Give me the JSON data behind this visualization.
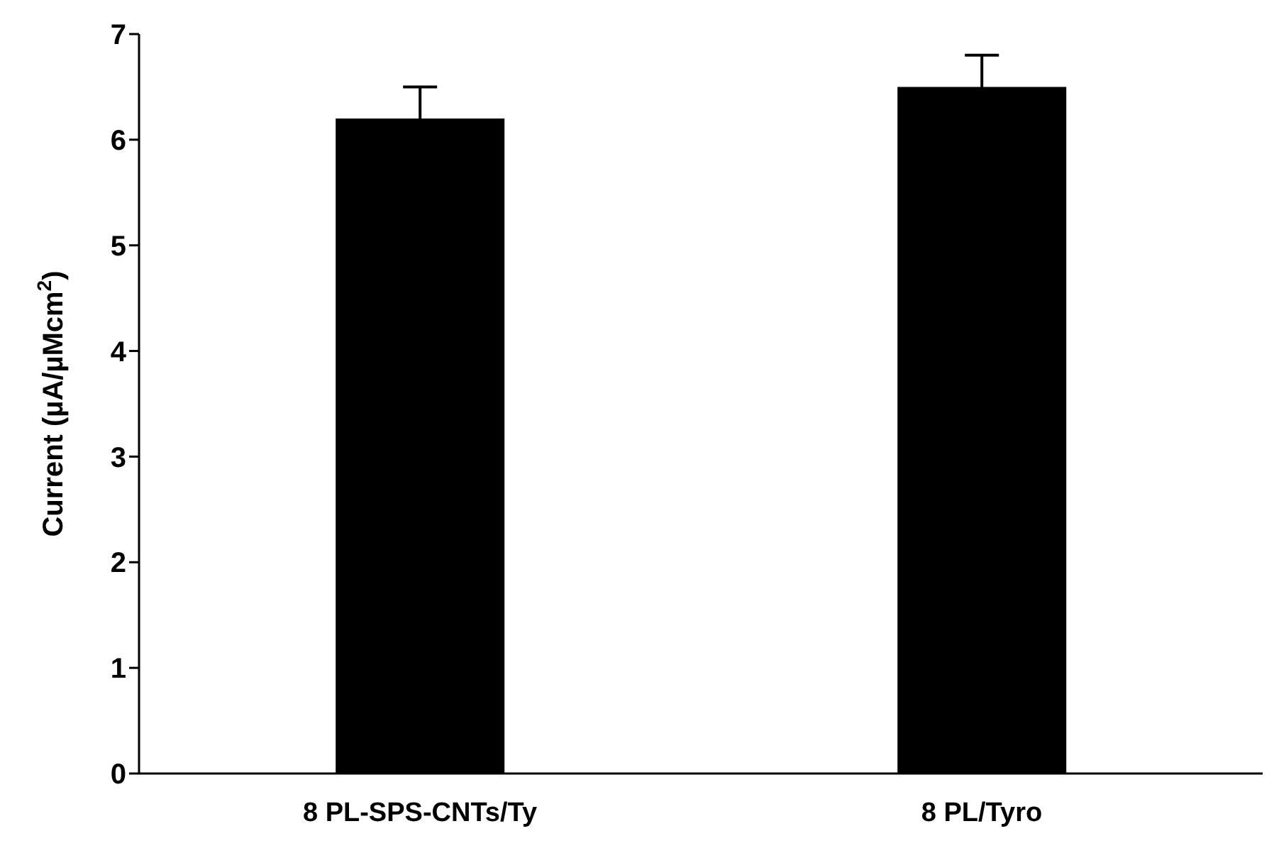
{
  "chart_data": {
    "type": "bar",
    "ylabel": "Current (µA/µMcm$^{2}$)",
    "categories": [
      "8 PL-SPS-CNTs/Ty",
      "8 PL/Tyro"
    ],
    "values": [
      6.2,
      6.5
    ],
    "errors": [
      0.3,
      0.3
    ],
    "color": "#000000",
    "ylim": [
      0,
      7
    ],
    "yticks": [
      0,
      1,
      2,
      3,
      4,
      5,
      6,
      7
    ],
    "grid": false,
    "legend": false
  }
}
